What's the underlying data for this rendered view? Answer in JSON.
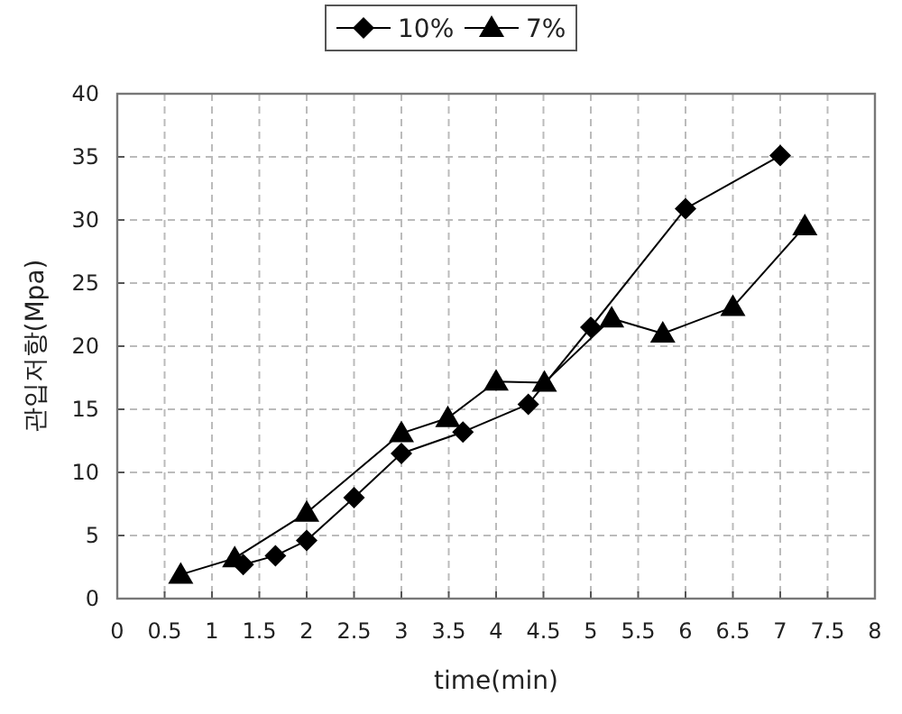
{
  "chart_data": {
    "type": "line",
    "xlabel": "time(min)",
    "ylabel": "관입저항(Mpa)",
    "xlim": [
      0,
      8
    ],
    "xticks": [
      0,
      0.5,
      1,
      1.5,
      2,
      2.5,
      3,
      3.5,
      4,
      4.5,
      5,
      5.5,
      6,
      6.5,
      7,
      7.5,
      8
    ],
    "ylim": [
      0,
      40
    ],
    "yticks": [
      0,
      5,
      10,
      15,
      20,
      25,
      30,
      35,
      40
    ],
    "grid": true,
    "legend": "top",
    "series": [
      {
        "name": "10%",
        "color": "#000000",
        "marker": "diamond",
        "x": [
          1.33,
          1.67,
          2.0,
          2.5,
          3.0,
          3.65,
          4.34,
          5.0,
          6.0,
          7.0
        ],
        "values": [
          2.7,
          3.4,
          4.6,
          8.0,
          11.5,
          13.2,
          15.4,
          21.5,
          30.9,
          35.1
        ]
      },
      {
        "name": "7%",
        "color": "#000000",
        "marker": "triangle",
        "x": [
          0.67,
          1.24,
          2.0,
          3.0,
          3.49,
          4.0,
          4.51,
          5.22,
          5.76,
          6.5,
          7.26
        ],
        "values": [
          1.9,
          3.2,
          6.8,
          13.1,
          14.3,
          17.2,
          17.1,
          22.2,
          21.0,
          23.1,
          29.5
        ]
      }
    ]
  }
}
